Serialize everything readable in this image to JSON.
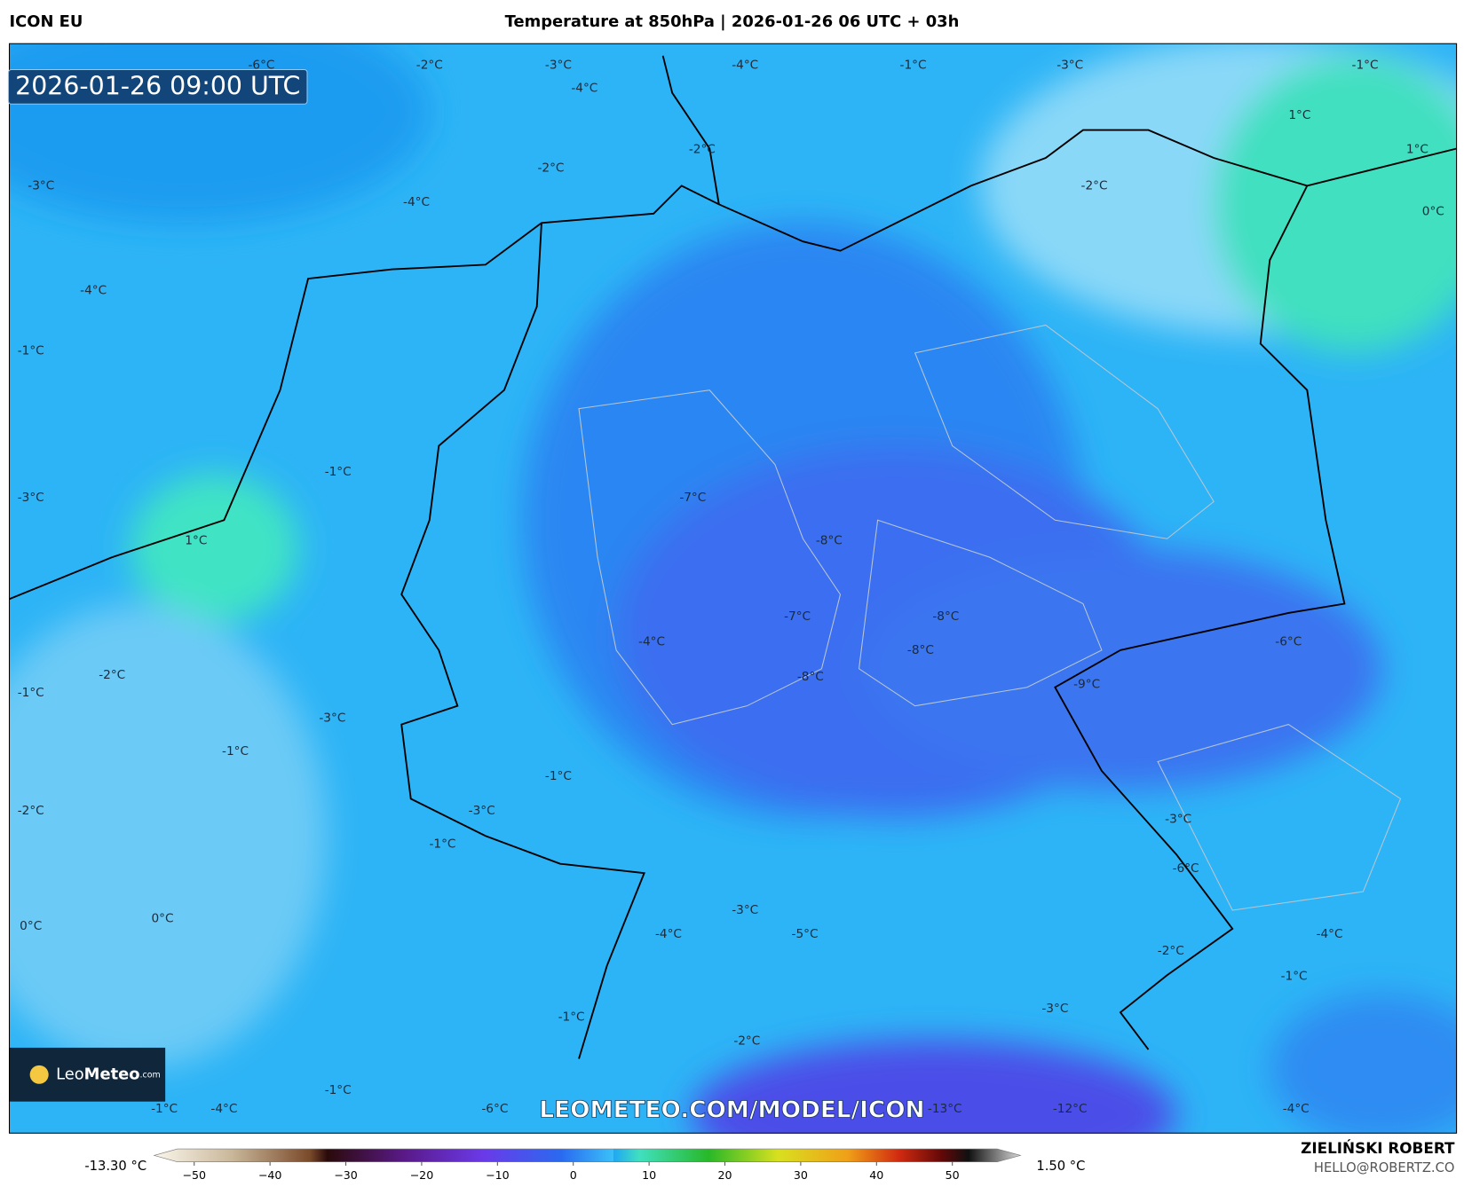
{
  "header": {
    "model": "ICON EU",
    "title": "Temperature at 850hPa | 2026-01-26 06 UTC + 03h"
  },
  "map": {
    "timestamp": "2026-01-26 09:00 UTC",
    "watermark": "LEOMETEO.COM/MODEL/ICON",
    "logo": [
      "Leo",
      "Meteo",
      ".com"
    ],
    "labels": [
      "-6°C",
      "-2°C",
      "-3°C",
      "-4°C",
      "-4°C",
      "-1°C",
      "-3°C",
      "-1°C",
      "1°C",
      "1°C",
      "0°C",
      "-2°C",
      "-2°C",
      "-2°C",
      "-3°C",
      "-4°C",
      "-4°C",
      "-1°C",
      "-1°C",
      "-3°C",
      "-7°C",
      "-8°C",
      "1°C",
      "-7°C",
      "-8°C",
      "-6°C",
      "-4°C",
      "-8°C",
      "-2°C",
      "-8°C",
      "-9°C",
      "-1°C",
      "-3°C",
      "-1°C",
      "-1°C",
      "-2°C",
      "-3°C",
      "-3°C",
      "-1°C",
      "-6°C",
      "-3°C",
      "0°C",
      "0°C",
      "-4°C",
      "-5°C",
      "-4°C",
      "-2°C",
      "-1°C",
      "-3°C",
      "-1°C",
      "-2°C",
      "-1°C",
      "-1°C",
      "-4°C",
      "-6°C",
      "-13°C",
      "-12°C",
      "-4°C"
    ]
  },
  "legend": {
    "min": "-13.30 °C",
    "max": "1.50 °C",
    "ticks": [
      {
        "value": -50,
        "label": "−50"
      },
      {
        "value": -40,
        "label": "−40"
      },
      {
        "value": -30,
        "label": "−30"
      },
      {
        "value": -20,
        "label": "−20"
      },
      {
        "value": -10,
        "label": "−10"
      },
      0,
      10,
      20,
      30,
      40,
      50
    ]
  },
  "footer": {
    "author": "ZIELIŃSKI ROBERT",
    "email": "HELLO@ROBERTZ.CO"
  }
}
